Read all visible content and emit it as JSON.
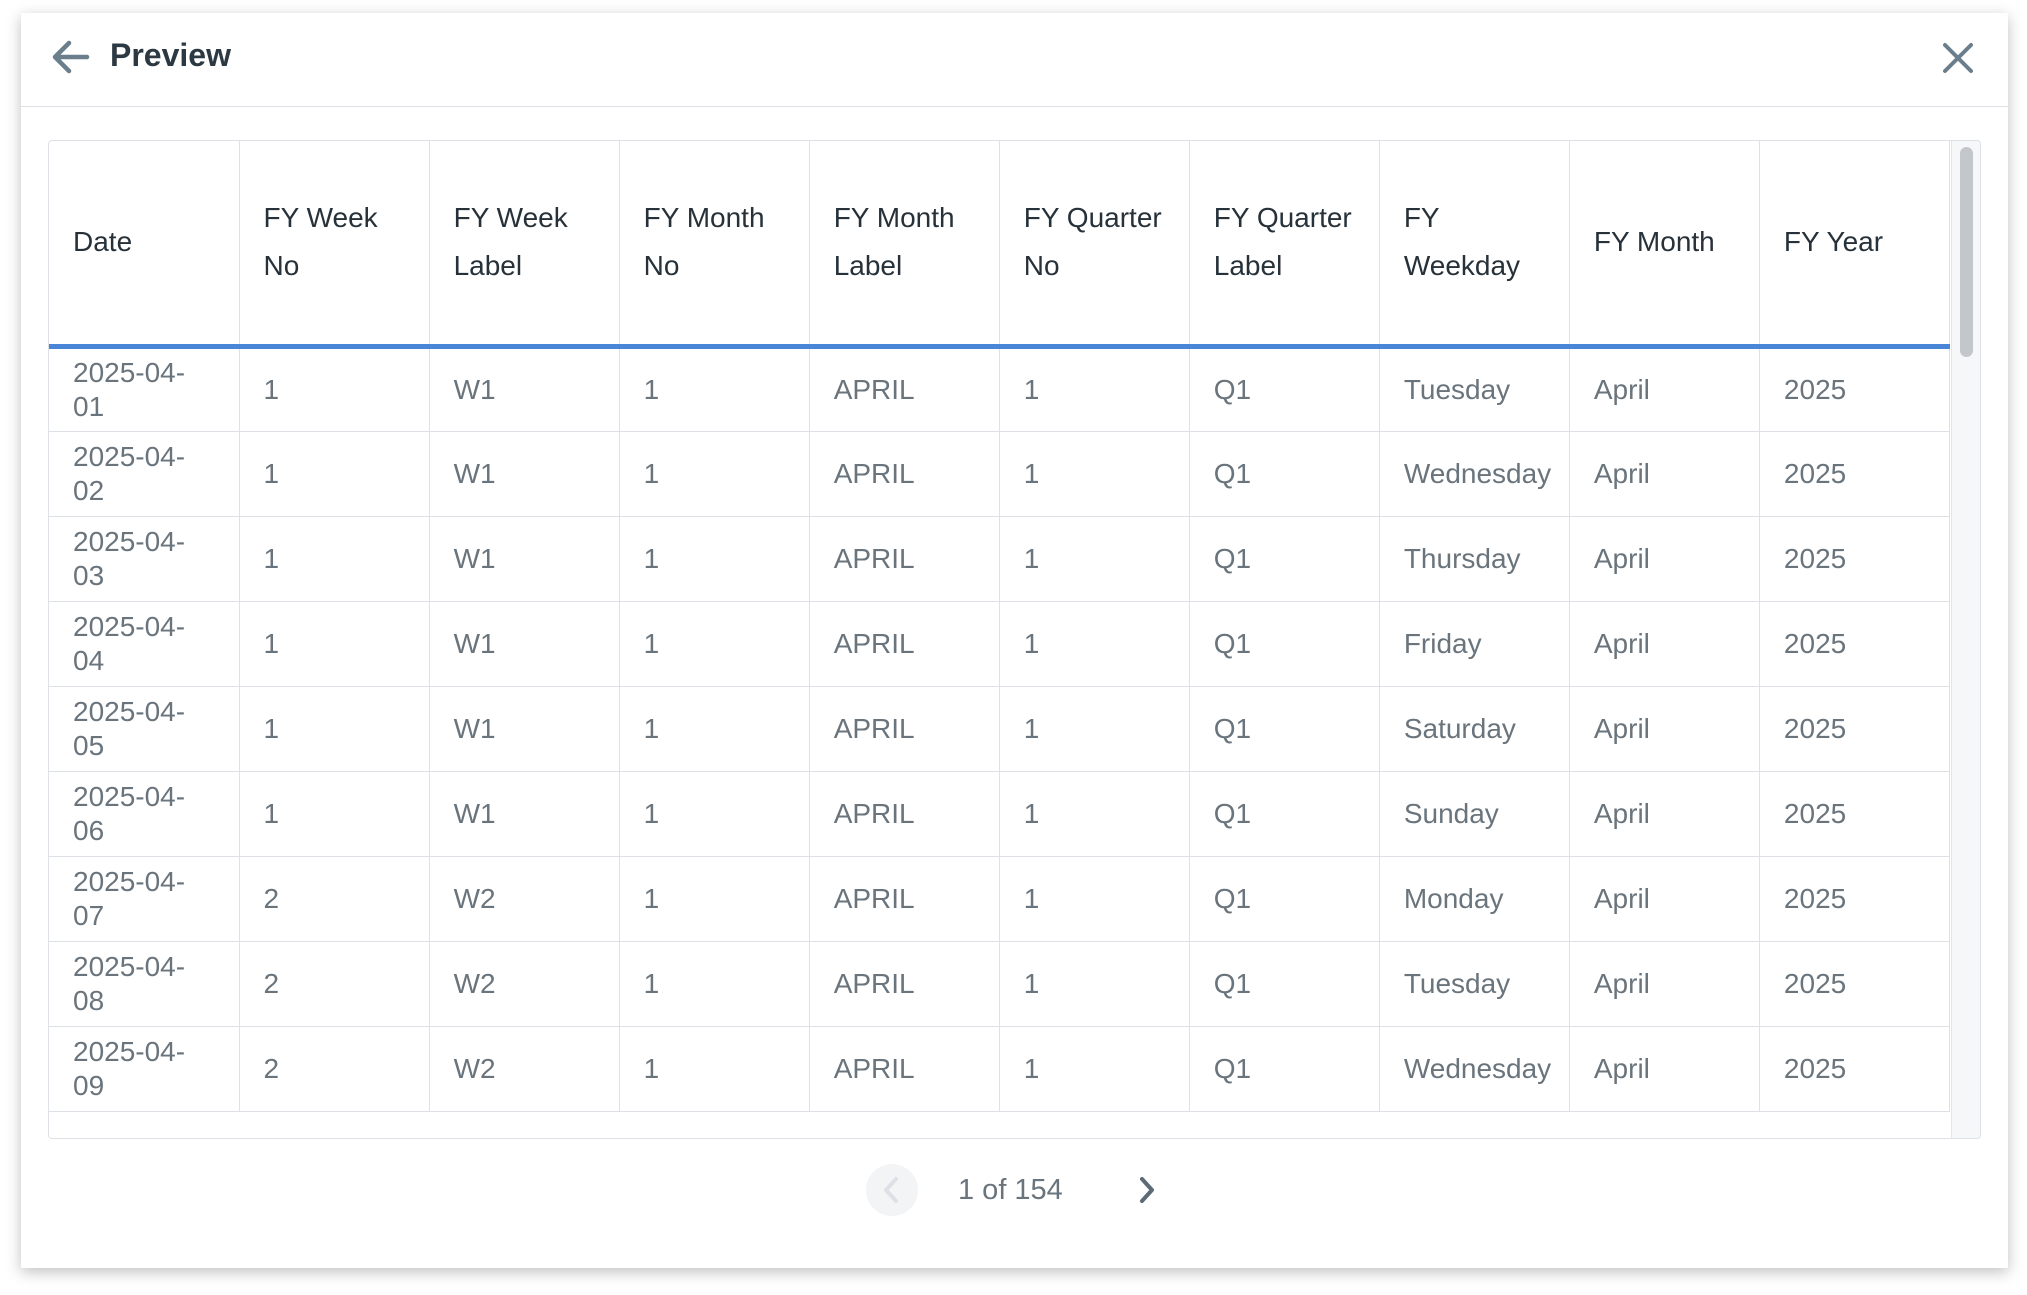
{
  "header": {
    "title": "Preview"
  },
  "table": {
    "columns": [
      "Date",
      "FY Week No",
      "FY Week Label",
      "FY Month No",
      "FY Month Label",
      "FY Quarter No",
      "FY Quarter Label",
      "FY Weekday",
      "FY Month",
      "FY Year"
    ],
    "rows": [
      [
        "2025-04-01",
        "1",
        "W1",
        "1",
        "APRIL",
        "1",
        "Q1",
        "Tuesday",
        "April",
        "2025"
      ],
      [
        "2025-04-02",
        "1",
        "W1",
        "1",
        "APRIL",
        "1",
        "Q1",
        "Wednesday",
        "April",
        "2025"
      ],
      [
        "2025-04-03",
        "1",
        "W1",
        "1",
        "APRIL",
        "1",
        "Q1",
        "Thursday",
        "April",
        "2025"
      ],
      [
        "2025-04-04",
        "1",
        "W1",
        "1",
        "APRIL",
        "1",
        "Q1",
        "Friday",
        "April",
        "2025"
      ],
      [
        "2025-04-05",
        "1",
        "W1",
        "1",
        "APRIL",
        "1",
        "Q1",
        "Saturday",
        "April",
        "2025"
      ],
      [
        "2025-04-06",
        "1",
        "W1",
        "1",
        "APRIL",
        "1",
        "Q1",
        "Sunday",
        "April",
        "2025"
      ],
      [
        "2025-04-07",
        "2",
        "W2",
        "1",
        "APRIL",
        "1",
        "Q1",
        "Monday",
        "April",
        "2025"
      ],
      [
        "2025-04-08",
        "2",
        "W2",
        "1",
        "APRIL",
        "1",
        "Q1",
        "Tuesday",
        "April",
        "2025"
      ],
      [
        "2025-04-09",
        "2",
        "W2",
        "1",
        "APRIL",
        "1",
        "Q1",
        "Wednesday",
        "April",
        "2025"
      ]
    ]
  },
  "pagination": "1 of 154"
}
